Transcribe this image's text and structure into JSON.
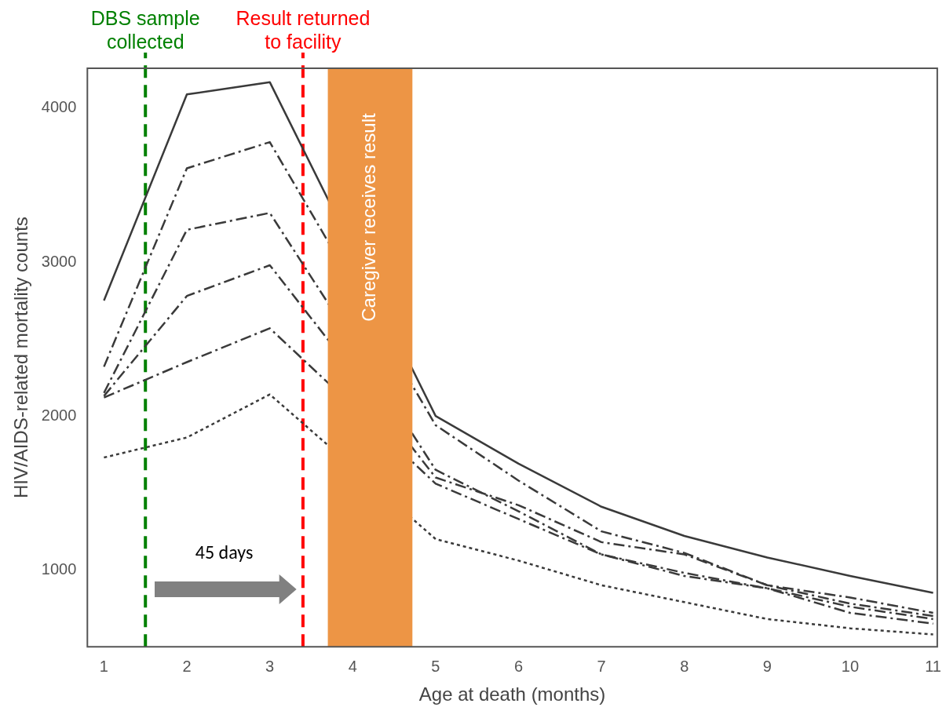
{
  "chart_data": {
    "type": "line",
    "xlabel": "Age at death (months)",
    "ylabel": "HIV/AIDS-related mortality counts",
    "x": [
      1,
      2,
      3,
      4,
      5,
      6,
      7,
      8,
      9,
      10,
      11
    ],
    "series": [
      {
        "color": "#3a3a3a",
        "line_style": "solid",
        "values": [
          2750,
          4090,
          4170,
          null,
          2000,
          1690,
          1410,
          1220,
          1080,
          960,
          850
        ]
      },
      {
        "color": "#3a3a3a",
        "line_style": "dashed",
        "values": [
          2320,
          3610,
          3780,
          null,
          1940,
          1580,
          1250,
          1110,
          900,
          820,
          720
        ]
      },
      {
        "color": "#3a3a3a",
        "line_style": "dashed",
        "values": [
          2150,
          3210,
          3320,
          null,
          1650,
          1380,
          1100,
          980,
          880,
          760,
          680
        ]
      },
      {
        "color": "#3a3a3a",
        "line_style": "dashed",
        "values": [
          2130,
          2780,
          2980,
          null,
          1600,
          1420,
          1180,
          1100,
          900,
          780,
          700
        ]
      },
      {
        "color": "#3a3a3a",
        "line_style": "dashed",
        "values": [
          2120,
          2350,
          2570,
          null,
          1560,
          1330,
          1100,
          960,
          880,
          720,
          650
        ]
      },
      {
        "color": "#3a3a3a",
        "line_style": "dotted",
        "values": [
          1730,
          1860,
          2140,
          null,
          1200,
          1060,
          900,
          790,
          680,
          620,
          580
        ]
      }
    ],
    "xlim": [
      0.8,
      11.05
    ],
    "xticks": [
      1,
      2,
      3,
      4,
      5,
      6,
      7,
      8,
      9,
      10,
      11
    ],
    "ylim": [
      500,
      4260
    ],
    "yticks": [
      1000,
      2000,
      3000,
      4000
    ],
    "grid": false,
    "legend": false,
    "marker": "none",
    "ref_lines": [
      {
        "axis": "x",
        "value": 1.5,
        "label": "DBS sample collected",
        "color": "#008000",
        "line_style": "dashed"
      },
      {
        "axis": "x",
        "value": 3.4,
        "label": "Result returned to facility",
        "color": "#ff0000",
        "line_style": "dashed"
      }
    ],
    "bands": [
      {
        "axis": "x",
        "from": 3.7,
        "to": 4.72,
        "label": "Caregiver receives result",
        "color": "#ed9545"
      }
    ],
    "annotations": [
      "45 days"
    ]
  }
}
